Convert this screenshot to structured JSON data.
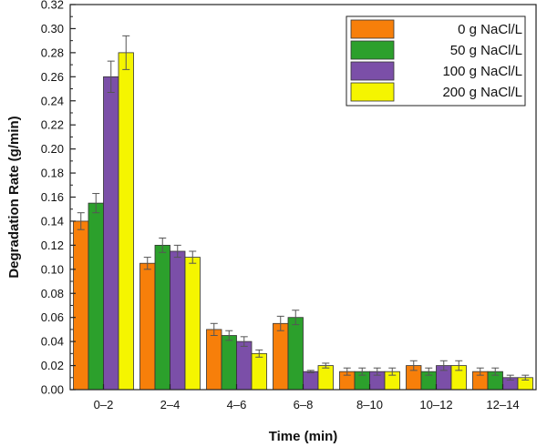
{
  "chart_data": {
    "type": "bar",
    "title": "",
    "xlabel": "Time (min)",
    "ylabel": "Degradation Rate (g/min)",
    "ylim": [
      0,
      0.32
    ],
    "yticks": [
      "0.00",
      "0.02",
      "0.04",
      "0.06",
      "0.08",
      "0.10",
      "0.12",
      "0.14",
      "0.16",
      "0.18",
      "0.20",
      "0.22",
      "0.24",
      "0.26",
      "0.28",
      "0.30",
      "0.32"
    ],
    "categories": [
      "0–2",
      "2–4",
      "4–6",
      "6–8",
      "8–10",
      "10–12",
      "12–14"
    ],
    "legend_position": "top-right",
    "series": [
      {
        "name": "0 g NaCl/L",
        "color": "#f77f0a",
        "values": [
          0.14,
          0.105,
          0.05,
          0.055,
          0.015,
          0.02,
          0.015
        ],
        "errors": [
          0.007,
          0.005,
          0.005,
          0.006,
          0.003,
          0.004,
          0.003
        ]
      },
      {
        "name": "50 g NaCl/L",
        "color": "#2ca02c",
        "values": [
          0.155,
          0.12,
          0.045,
          0.06,
          0.015,
          0.015,
          0.015
        ],
        "errors": [
          0.008,
          0.006,
          0.004,
          0.006,
          0.003,
          0.003,
          0.003
        ]
      },
      {
        "name": "100 g NaCl/L",
        "color": "#7b4fa8",
        "values": [
          0.26,
          0.115,
          0.04,
          0.015,
          0.015,
          0.02,
          0.01
        ],
        "errors": [
          0.013,
          0.005,
          0.004,
          0.001,
          0.003,
          0.004,
          0.002
        ]
      },
      {
        "name": "200 g NaCl/L",
        "color": "#f5f500",
        "values": [
          0.28,
          0.11,
          0.03,
          0.02,
          0.015,
          0.02,
          0.01
        ],
        "errors": [
          0.014,
          0.005,
          0.003,
          0.002,
          0.003,
          0.004,
          0.002
        ]
      }
    ]
  }
}
